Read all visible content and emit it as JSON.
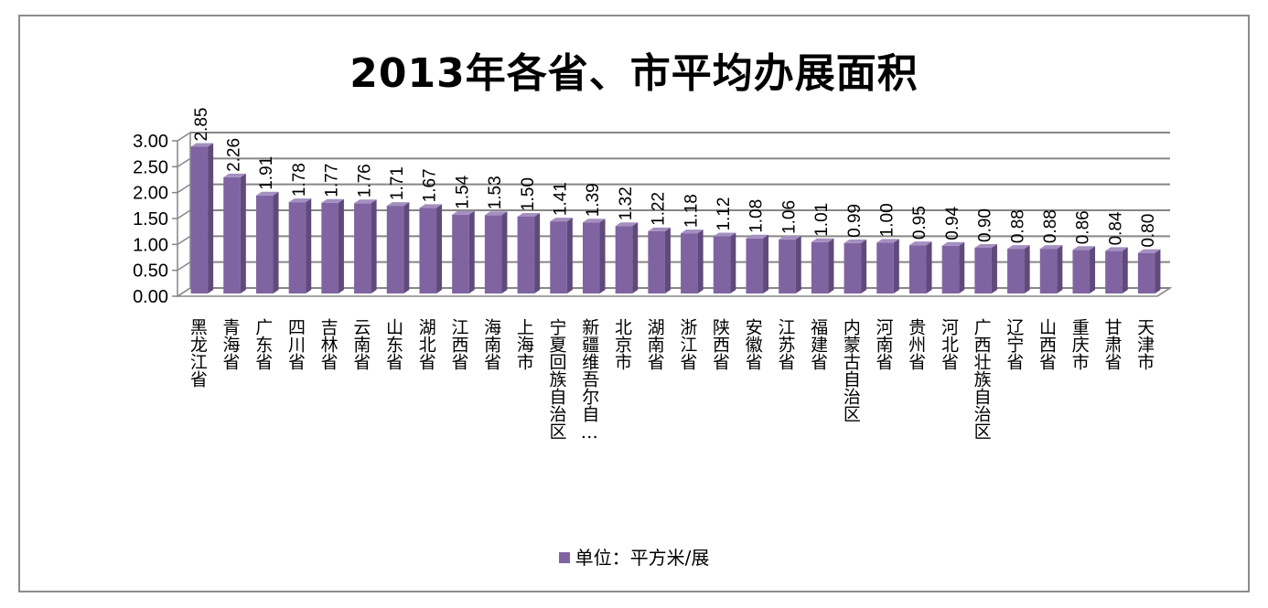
{
  "chart_data": {
    "type": "bar",
    "title": "2013年各省、市平均办展面积",
    "categories": [
      "黑龙江省",
      "青海省",
      "广东省",
      "四川省",
      "吉林省",
      "云南省",
      "山东省",
      "湖北省",
      "江西省",
      "海南省",
      "上海市",
      "宁夏回族自治区",
      "新疆维吾尔自…",
      "北京市",
      "湖南省",
      "浙江省",
      "陕西省",
      "安徽省",
      "江苏省",
      "福建省",
      "内蒙古自治区",
      "河南省",
      "贵州省",
      "河北省",
      "广西壮族自治区",
      "辽宁省",
      "山西省",
      "重庆市",
      "甘肃省",
      "天津市"
    ],
    "series": [
      {
        "name": "单位：平方米/展",
        "values": [
          2.85,
          2.26,
          1.91,
          1.78,
          1.77,
          1.76,
          1.71,
          1.67,
          1.54,
          1.53,
          1.5,
          1.41,
          1.39,
          1.32,
          1.22,
          1.18,
          1.12,
          1.08,
          1.06,
          1.01,
          0.99,
          1.0,
          0.95,
          0.94,
          0.9,
          0.88,
          0.88,
          0.86,
          0.84,
          0.8
        ],
        "labels": [
          "2.85",
          "2.26",
          "1.91",
          "1.78",
          "1.77",
          "1.76",
          "1.71",
          "1.67",
          "1.54",
          "1.53",
          "1.50",
          "1.41",
          "1.39",
          "1.32",
          "1.22",
          "1.18",
          "1.12",
          "1.08",
          "1.06",
          "1.01",
          "0.99",
          "1.00",
          "0.95",
          "0.94",
          "0.90",
          "0.88",
          "0.88",
          "0.86",
          "0.84",
          "0.80"
        ],
        "color": "#8064a2"
      }
    ],
    "yticks": [
      "0.00",
      "0.50",
      "1.00",
      "1.50",
      "2.00",
      "2.50",
      "3.00"
    ],
    "ylim": [
      0,
      3
    ],
    "xlabel": "",
    "ylabel": "",
    "grid": true,
    "legend_position": "bottom",
    "style": "3d-bar"
  }
}
